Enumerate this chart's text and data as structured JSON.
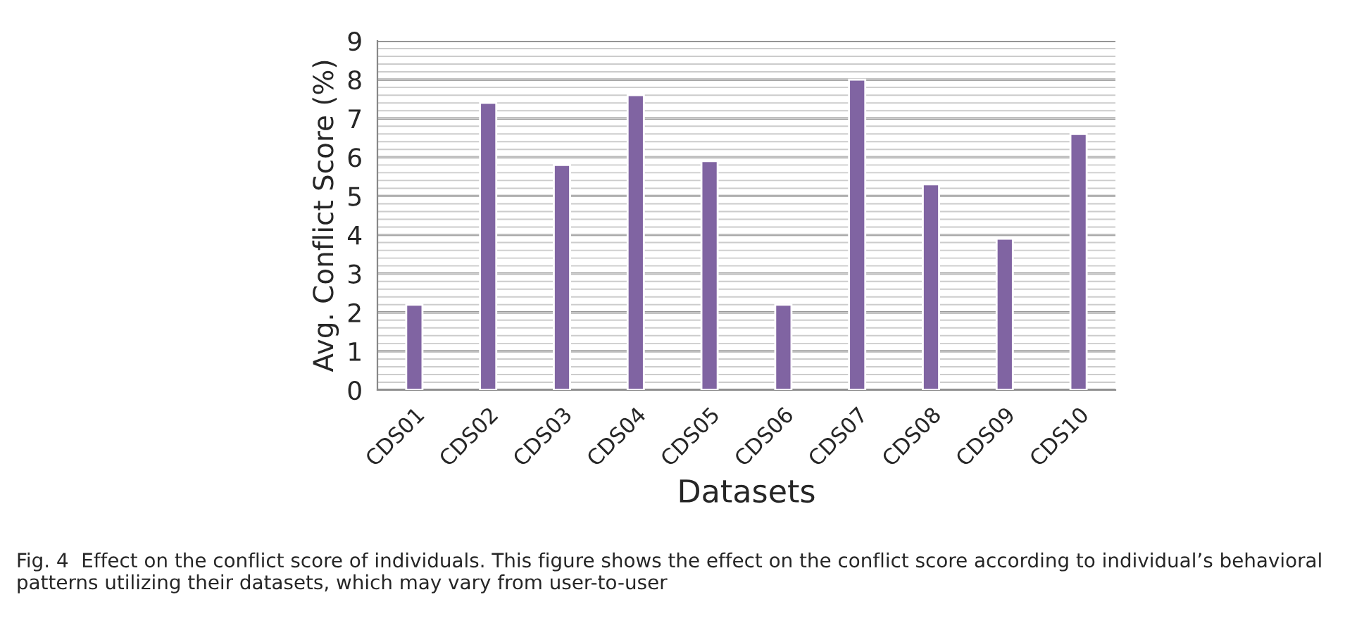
{
  "chart_data": {
    "type": "bar",
    "categories": [
      "CDS01",
      "CDS02",
      "CDS03",
      "CDS04",
      "CDS05",
      "CDS06",
      "CDS07",
      "CDS08",
      "CDS09",
      "CDS10"
    ],
    "values": [
      2.2,
      7.4,
      5.8,
      7.6,
      5.9,
      2.2,
      8.0,
      5.3,
      3.9,
      6.6
    ],
    "color": "#8064a2",
    "xlabel": "Datasets",
    "ylabel": "Avg. Conflict Score (%)",
    "ylim": [
      0,
      9
    ],
    "yticks": [
      0,
      1,
      2,
      3,
      4,
      5,
      6,
      7,
      8,
      9
    ],
    "grid": "y",
    "annotations": [
      "Fig. 4  Effect on the conflict score of individuals. This figure shows the effect on the conflict score according to individual’s behavioral patterns utilizing their datasets, which may vary from user-to-user"
    ]
  }
}
